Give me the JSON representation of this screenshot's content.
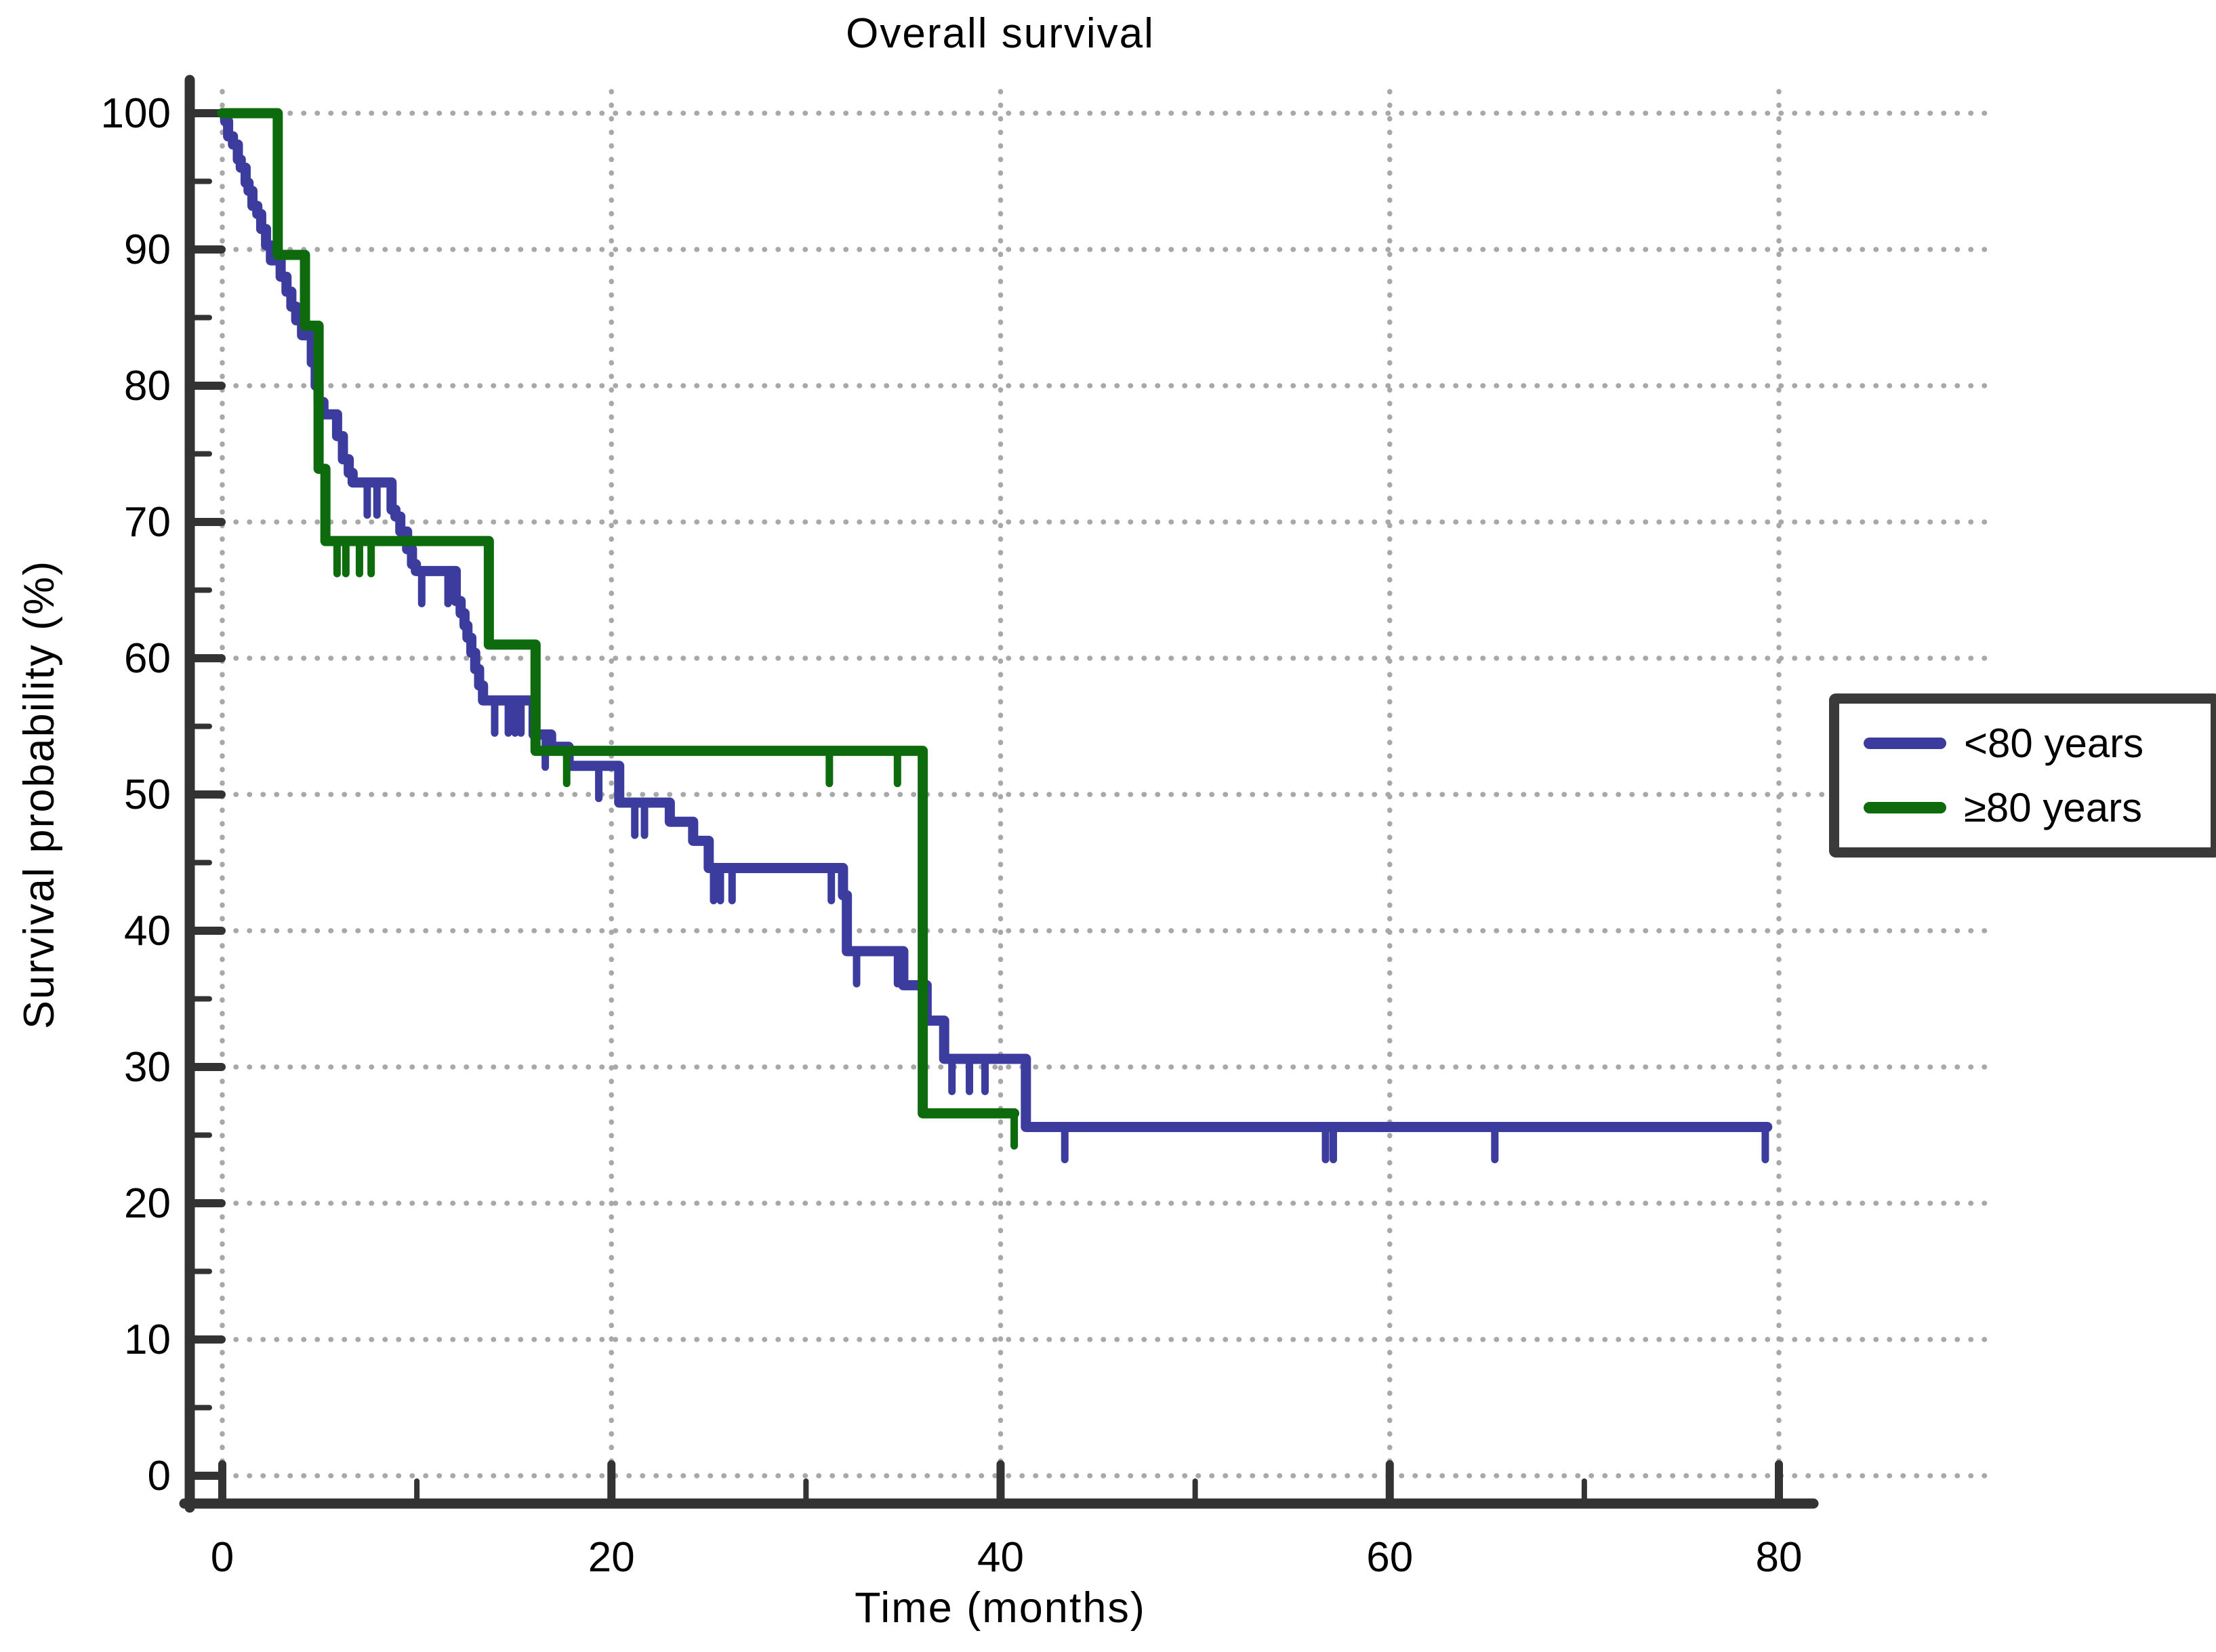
{
  "title": "Overall survival",
  "axes": {
    "x_label": "Time (months)",
    "y_label": "Survival probability (%)"
  },
  "legend": {
    "position": "right",
    "items": [
      {
        "label": "<80 years",
        "color": "#3c3c9e"
      },
      {
        "label": "≥80 years",
        "color": "#0d6b0d"
      }
    ]
  },
  "colors": {
    "axis": "#333333",
    "grid_dots": "#a8a8a8",
    "text": "#000000",
    "background": "#ffffff",
    "series_under80": "#3c3c9e",
    "series_over80": "#0d6b0d"
  },
  "chart_data": {
    "type": "line",
    "subtype": "kaplan-meier-step",
    "title": "Overall survival",
    "xlabel": "Time (months)",
    "ylabel": "Survival probability (%)",
    "xlim": [
      0,
      80
    ],
    "ylim": [
      0,
      100
    ],
    "x_major_ticks": [
      0,
      20,
      40,
      60,
      80
    ],
    "x_minor_ticks": [
      10,
      30,
      50,
      70
    ],
    "y_major_ticks": [
      100,
      90,
      80,
      70,
      60,
      50,
      40,
      30,
      20,
      10,
      0
    ],
    "y_minor_ticks": [
      95,
      85,
      75,
      65,
      55,
      45,
      35,
      25,
      15,
      5
    ],
    "grid": "dotted gridlines at major ticks, both axes",
    "legend_position": "right",
    "series": [
      {
        "name": "<80 years",
        "color": "#3c3c9e",
        "steps": [
          [
            0,
            100
          ],
          [
            0.15,
            99.4
          ],
          [
            0.3,
            98.3
          ],
          [
            0.55,
            97.7
          ],
          [
            0.8,
            96.6
          ],
          [
            0.95,
            96.0
          ],
          [
            1.2,
            94.9
          ],
          [
            1.35,
            94.3
          ],
          [
            1.55,
            93.2
          ],
          [
            1.8,
            92.6
          ],
          [
            2.0,
            91.5
          ],
          [
            2.25,
            90.3
          ],
          [
            2.5,
            89.2
          ],
          [
            3.0,
            88.0
          ],
          [
            3.3,
            86.9
          ],
          [
            3.55,
            85.8
          ],
          [
            3.8,
            84.8
          ],
          [
            4.1,
            83.7
          ],
          [
            4.6,
            81.7
          ],
          [
            4.8,
            80.0
          ],
          [
            4.95,
            78.8
          ],
          [
            5.2,
            77.9
          ],
          [
            5.9,
            76.3
          ],
          [
            6.2,
            74.6
          ],
          [
            6.5,
            73.6
          ],
          [
            6.7,
            72.9
          ],
          [
            8.7,
            70.9
          ],
          [
            8.9,
            70.4
          ],
          [
            9.15,
            69.3
          ],
          [
            9.5,
            68.0
          ],
          [
            9.75,
            66.9
          ],
          [
            9.95,
            66.4
          ],
          [
            12.0,
            64.2
          ],
          [
            12.25,
            63.3
          ],
          [
            12.45,
            62.4
          ],
          [
            12.6,
            61.5
          ],
          [
            12.8,
            60.4
          ],
          [
            13.0,
            59.2
          ],
          [
            13.2,
            58.0
          ],
          [
            13.4,
            56.9
          ],
          [
            16.0,
            54.4
          ],
          [
            16.9,
            53.5
          ],
          [
            17.8,
            52.1
          ],
          [
            20.4,
            49.4
          ],
          [
            23.0,
            48.0
          ],
          [
            24.2,
            46.6
          ],
          [
            25.0,
            44.6
          ],
          [
            31.9,
            42.6
          ],
          [
            32.1,
            38.5
          ],
          [
            35.0,
            36.0
          ],
          [
            36.2,
            33.4
          ],
          [
            37.1,
            30.6
          ],
          [
            41.3,
            25.6
          ]
        ],
        "end_time": 79.4,
        "end_censored": true,
        "censor_marks": [
          [
            7.45,
            72.9
          ],
          [
            7.95,
            72.9
          ],
          [
            10.25,
            66.4
          ],
          [
            11.6,
            66.4
          ],
          [
            14.0,
            56.9
          ],
          [
            14.7,
            56.9
          ],
          [
            15.05,
            56.9
          ],
          [
            15.35,
            56.9
          ],
          [
            16.6,
            54.4
          ],
          [
            19.35,
            52.1
          ],
          [
            21.2,
            49.4
          ],
          [
            21.7,
            49.4
          ],
          [
            25.25,
            44.6
          ],
          [
            25.6,
            44.6
          ],
          [
            26.2,
            44.6
          ],
          [
            31.3,
            44.6
          ],
          [
            32.6,
            38.5
          ],
          [
            34.7,
            38.5
          ],
          [
            37.5,
            30.6
          ],
          [
            38.4,
            30.6
          ],
          [
            39.2,
            30.6
          ],
          [
            43.3,
            25.6
          ],
          [
            56.7,
            25.6
          ],
          [
            57.1,
            25.6
          ],
          [
            65.4,
            25.6
          ],
          [
            79.3,
            25.6
          ]
        ]
      },
      {
        "name": "≥80 years",
        "color": "#0d6b0d",
        "steps": [
          [
            0,
            100
          ],
          [
            2.85,
            89.6
          ],
          [
            4.25,
            84.4
          ],
          [
            4.95,
            73.9
          ],
          [
            5.3,
            68.6
          ],
          [
            13.7,
            61.0
          ],
          [
            16.1,
            53.2
          ],
          [
            36.0,
            26.6
          ]
        ],
        "end_time": 40.7,
        "end_censored": true,
        "censor_marks": [
          [
            5.9,
            68.6
          ],
          [
            6.35,
            68.6
          ],
          [
            7.05,
            68.6
          ],
          [
            7.65,
            68.6
          ],
          [
            17.7,
            53.2
          ],
          [
            31.2,
            53.2
          ],
          [
            34.7,
            53.2
          ],
          [
            40.7,
            26.6
          ]
        ]
      }
    ]
  }
}
